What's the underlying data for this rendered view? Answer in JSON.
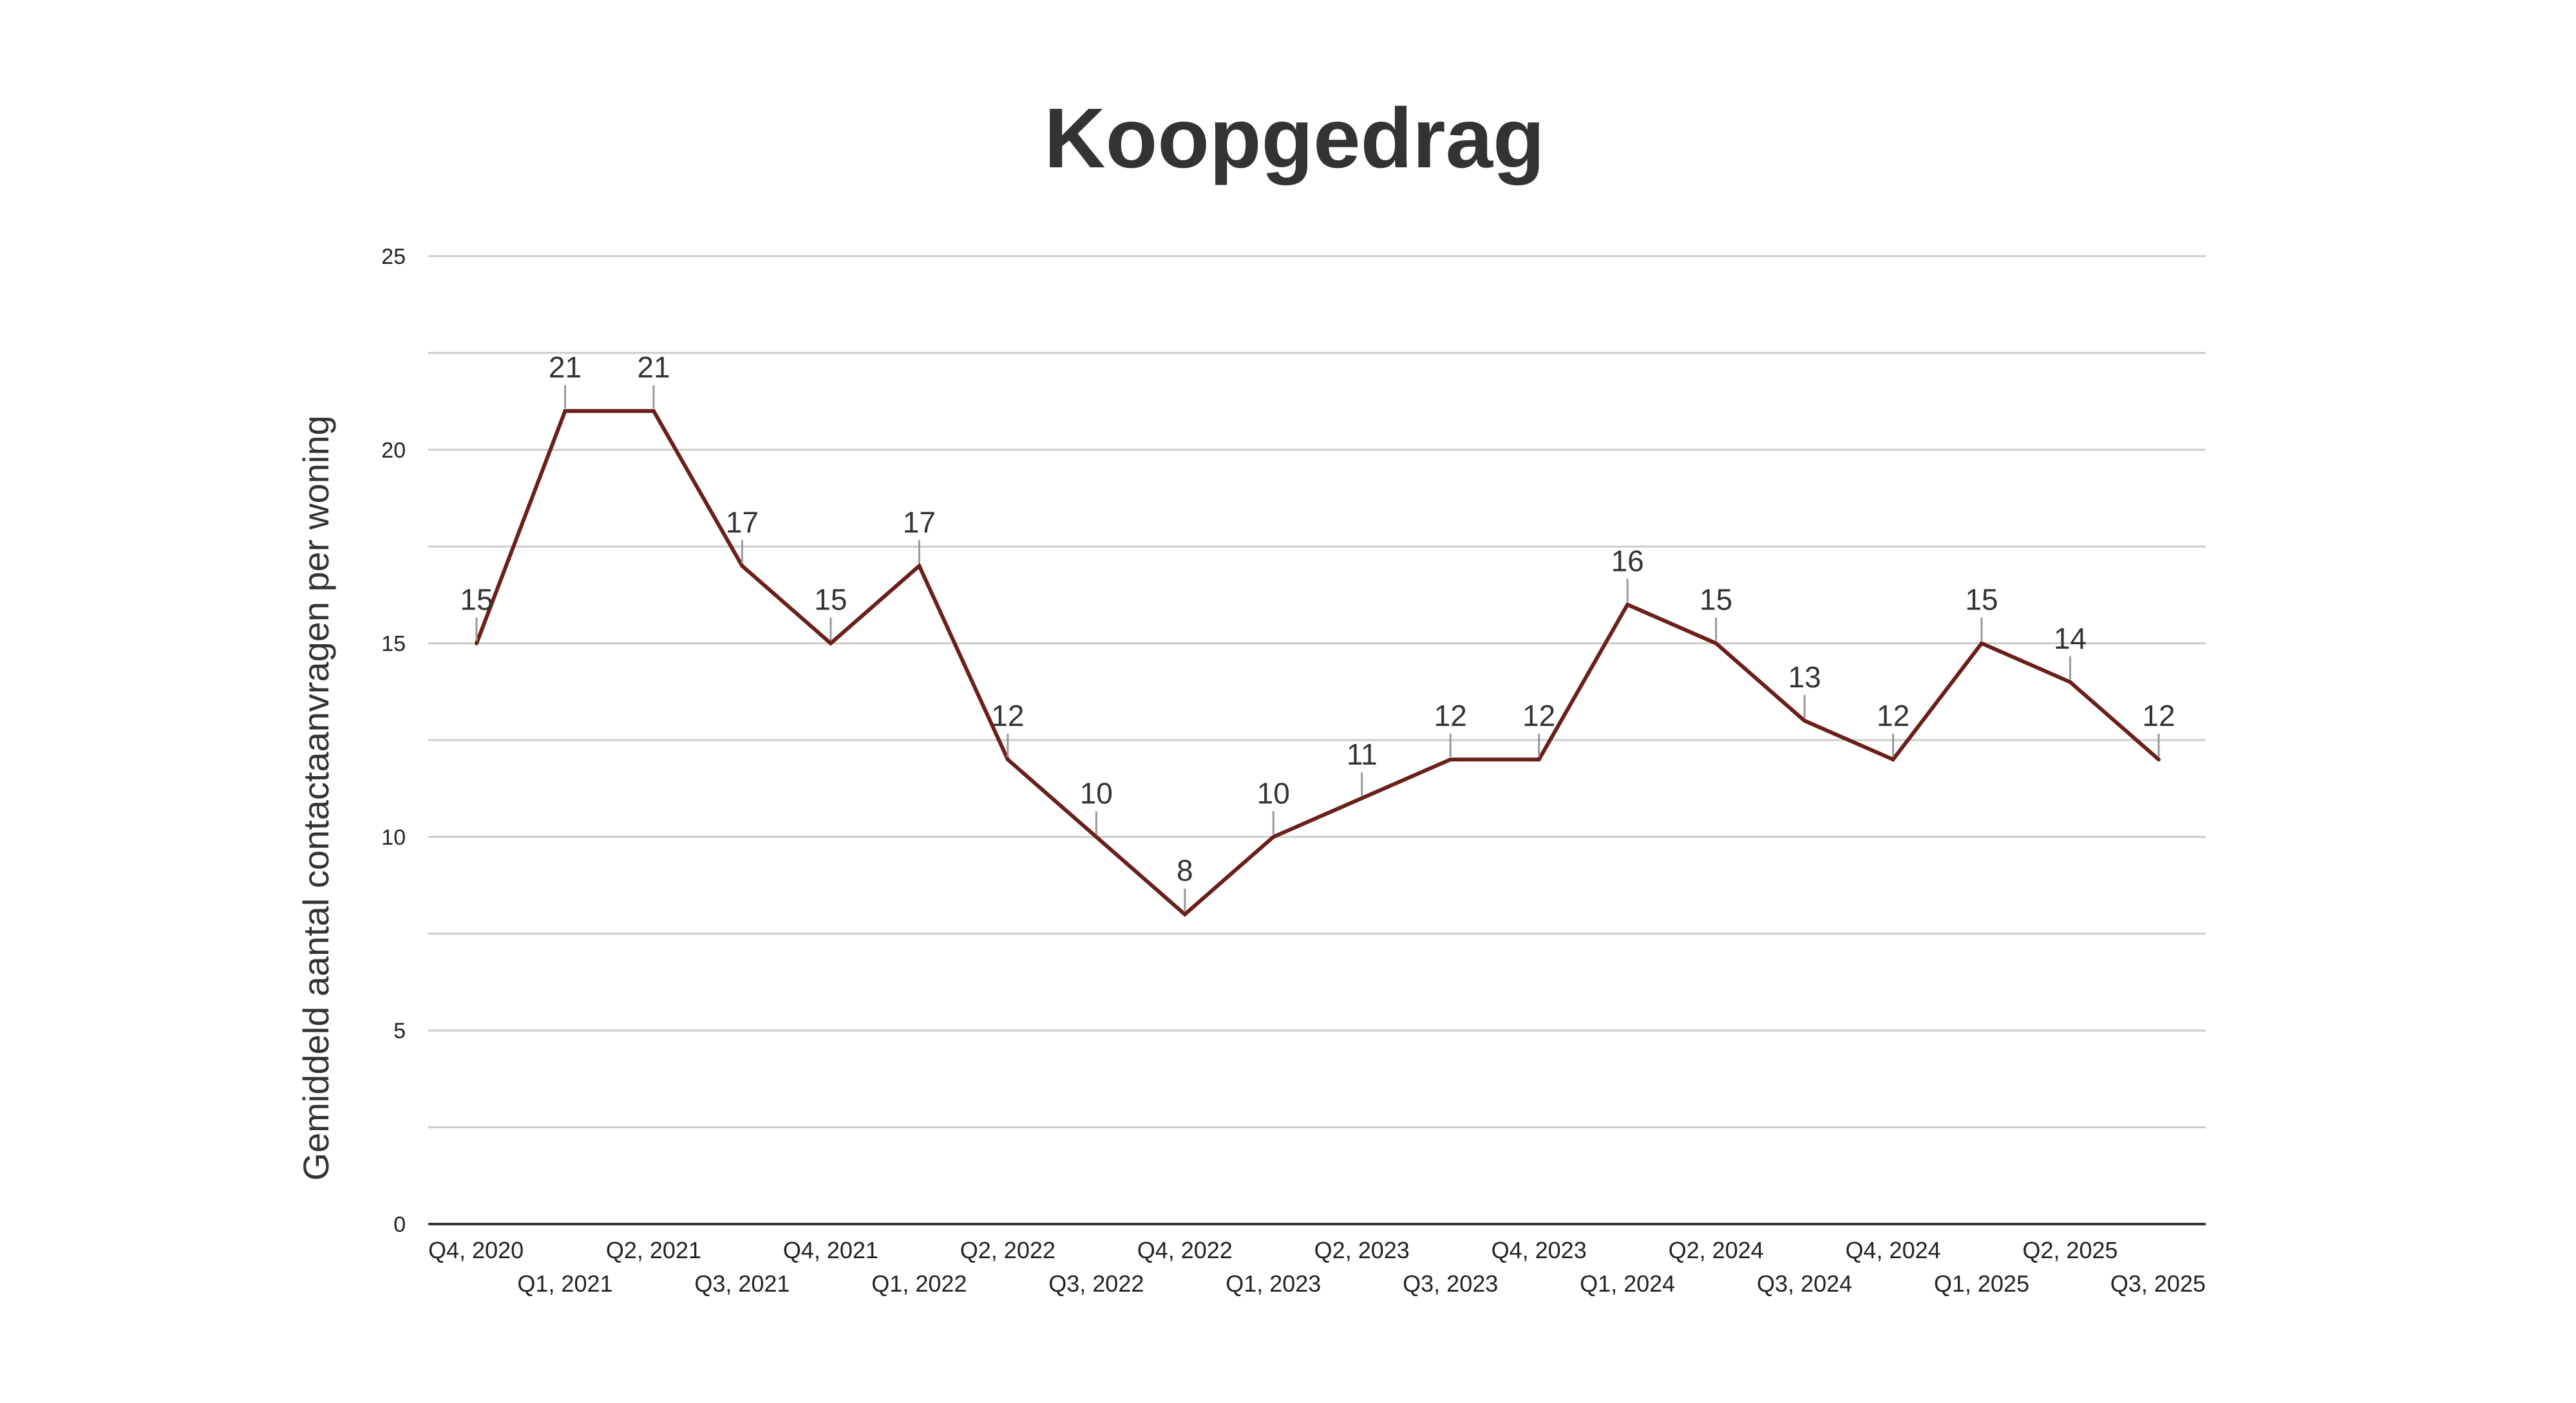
{
  "chart_data": {
    "type": "line",
    "title": "Koopgedrag",
    "xlabel": "",
    "ylabel": "Gemiddeld aantal contactaanvragen per woning",
    "ylim": [
      0,
      25
    ],
    "yticks": [
      0,
      5,
      10,
      15,
      20,
      25
    ],
    "grid": true,
    "legend": "none",
    "categories": [
      "Q4, 2020",
      "Q1, 2021",
      "Q2, 2021",
      "Q3, 2021",
      "Q4, 2021",
      "Q1, 2022",
      "Q2, 2022",
      "Q3, 2022",
      "Q4, 2022",
      "Q1, 2023",
      "Q2, 2023",
      "Q3, 2023",
      "Q4, 2023",
      "Q1, 2024",
      "Q2, 2024",
      "Q3, 2024",
      "Q4, 2024",
      "Q1, 2025",
      "Q2, 2025",
      "Q3, 2025"
    ],
    "series": [
      {
        "values": [
          15,
          21,
          21,
          17,
          15,
          17,
          12,
          10,
          8,
          10,
          11,
          12,
          12,
          16,
          15,
          13,
          12,
          15,
          14,
          12
        ]
      }
    ],
    "colors": {
      "line": "#6b1f1a",
      "grid": "#cccccc",
      "axis": "#333333",
      "leader": "#999999"
    }
  }
}
